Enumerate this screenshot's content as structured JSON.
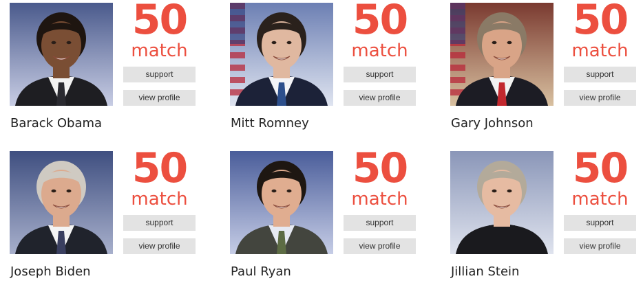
{
  "candidates": [
    {
      "name": "Barack Obama",
      "score": "50",
      "match_label": "match",
      "support_label": "support",
      "profile_label": "view profile",
      "photo": {
        "bg": "#4a5a8c",
        "bg2": "#c8cde4",
        "skin": "#7a4e34",
        "hair": "#1e1510",
        "suit": "#1e1e22",
        "shirt": "#f2f2f2",
        "tie": "#2a2a30",
        "flag": false
      }
    },
    {
      "name": "Mitt Romney",
      "score": "50",
      "match_label": "match",
      "support_label": "support",
      "profile_label": "view profile",
      "photo": {
        "bg": "#6c7fb3",
        "bg2": "#dfe4f0",
        "skin": "#e0b8a0",
        "hair": "#2a211c",
        "suit": "#1c2238",
        "shirt": "#f4f4f7",
        "tie": "#2d4f8c",
        "flag": true
      }
    },
    {
      "name": "Gary Johnson",
      "score": "50",
      "match_label": "match",
      "support_label": "support",
      "profile_label": "view profile",
      "photo": {
        "bg": "#7a3a30",
        "bg2": "#d8c0a0",
        "skin": "#d9a487",
        "hair": "#8a7a66",
        "suit": "#1c1c24",
        "shirt": "#f2f2f2",
        "tie": "#c2282e",
        "flag": true
      }
    },
    {
      "name": "Joseph Biden",
      "score": "50",
      "match_label": "match",
      "support_label": "support",
      "profile_label": "view profile",
      "photo": {
        "bg": "#3f4f80",
        "bg2": "#a8b0cc",
        "skin": "#dcaa8e",
        "hair": "#cfcac2",
        "suit": "#20232c",
        "shirt": "#f4f4f4",
        "tie": "#3a3f60",
        "flag": false
      }
    },
    {
      "name": "Paul Ryan",
      "score": "50",
      "match_label": "match",
      "support_label": "support",
      "profile_label": "view profile",
      "photo": {
        "bg": "#4a5d9a",
        "bg2": "#c6cde6",
        "skin": "#e0ad90",
        "hair": "#1e1712",
        "suit": "#43453e",
        "shirt": "#e6e9f2",
        "tie": "#5d6c44",
        "flag": false
      }
    },
    {
      "name": "Jillian Stein",
      "score": "50",
      "match_label": "match",
      "support_label": "support",
      "profile_label": "view profile",
      "photo": {
        "bg": "#8a96b8",
        "bg2": "#dfe3ee",
        "skin": "#e6bba2",
        "hair": "#b3aa9a",
        "suit": "#1a1a1e",
        "shirt": "#1a1a1e",
        "tie": "#1a1a1e",
        "flag": false
      }
    }
  ],
  "colors": {
    "accent": "#ec4f3f",
    "button_bg": "#e3e3e3",
    "button_text": "#333333",
    "name_text": "#222222"
  }
}
